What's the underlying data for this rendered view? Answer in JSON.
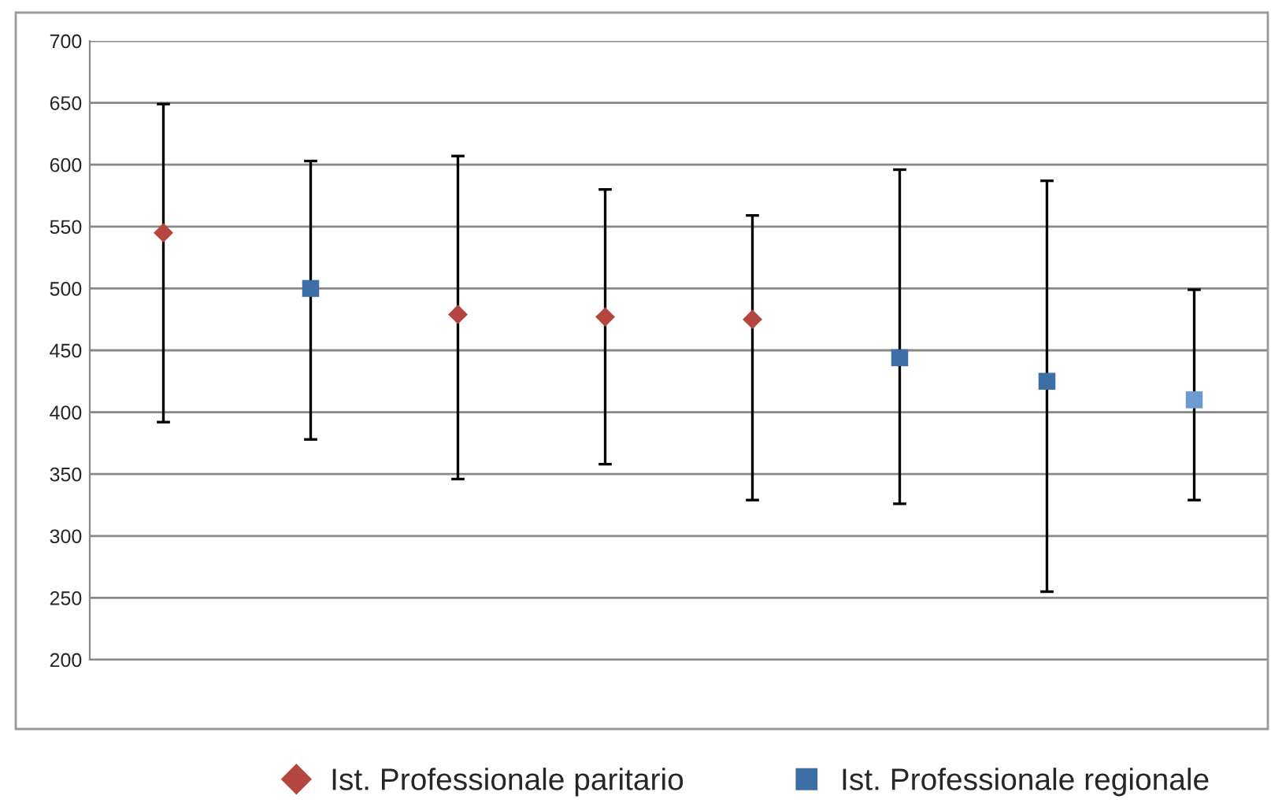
{
  "chart_data": {
    "type": "scatter",
    "categories": [
      null,
      null,
      null,
      null,
      null,
      null,
      null,
      null
    ],
    "series": [
      {
        "name": "Ist. Professionale paritario",
        "color": "#b5463f",
        "marker": "diamond",
        "values": [
          545,
          null,
          479,
          477,
          475,
          null,
          null,
          null
        ],
        "errors": [
          [
            392,
            649
          ],
          null,
          [
            346,
            607
          ],
          [
            358,
            580
          ],
          [
            329,
            559
          ],
          null,
          null,
          null
        ]
      },
      {
        "name": "Ist. Professionale regionale",
        "color": "#3d6fa6",
        "marker": "square",
        "colors": [
          "#3d6fa6",
          "#3d6fa6",
          "#3d6fa6",
          "#3d6fa6",
          "#3d6fa6",
          "#3d6fa6",
          "#3d6fa6",
          "#6b9bd0"
        ],
        "values": [
          null,
          500,
          null,
          null,
          null,
          444,
          425,
          410
        ],
        "errors": [
          null,
          [
            378,
            603
          ],
          null,
          null,
          null,
          [
            326,
            596
          ],
          [
            255,
            587
          ],
          [
            329,
            499
          ]
        ]
      }
    ],
    "ylim": [
      200,
      700
    ],
    "yticks": [
      200,
      250,
      300,
      350,
      400,
      450,
      500,
      550,
      600,
      650,
      700
    ],
    "grid": "y",
    "legend": "bottom"
  }
}
